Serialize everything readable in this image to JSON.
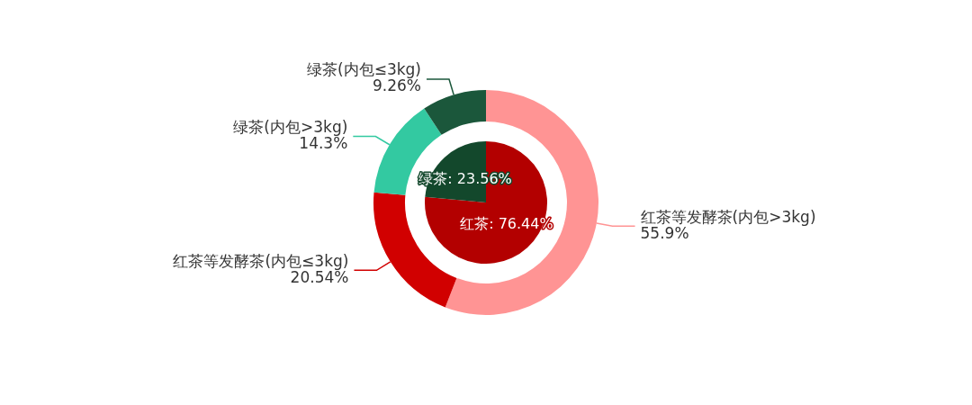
{
  "chart_data": [
    {
      "type": "pie",
      "categories": [
        "红茶",
        "绿茶"
      ],
      "values": [
        76.44,
        23.56
      ],
      "colors": [
        "#b30000",
        "#13482c"
      ],
      "value_labels": [
        "76.44%",
        "23.56%"
      ]
    },
    {
      "type": "donut",
      "categories": [
        "红茶等发酵茶(内包>3kg)",
        "红茶等发酵茶(内包≤3kg)",
        "绿茶(内包>3kg)",
        "绿茶(内包≤3kg)"
      ],
      "values": [
        55.9,
        20.54,
        14.3,
        9.26
      ],
      "colors": [
        "#ff9494",
        "#d10000",
        "#33c9a1",
        "#1b573b"
      ],
      "value_labels": [
        "55.9%",
        "20.54%",
        "14.3%",
        "9.26%"
      ]
    }
  ]
}
